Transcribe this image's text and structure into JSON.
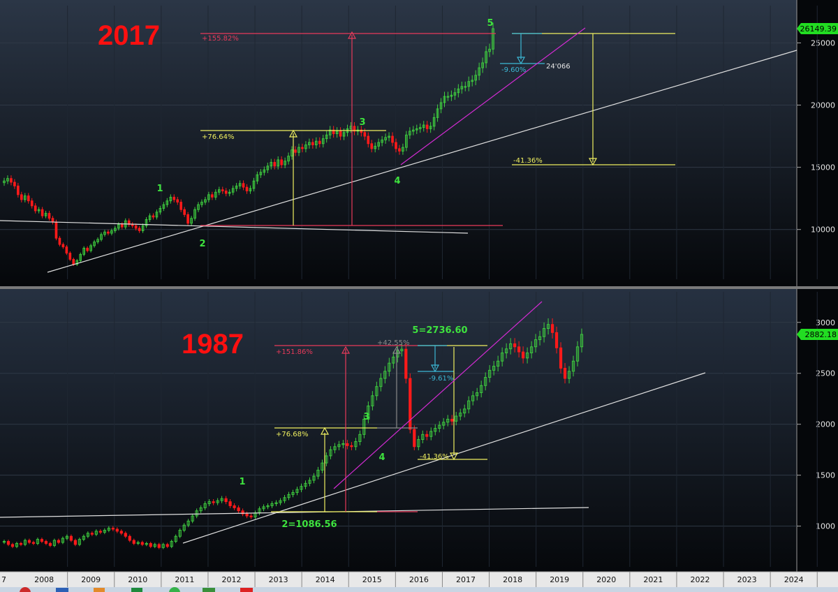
{
  "colors": {
    "bull": "#3fcf3f",
    "bear": "#ff1a1a",
    "yellow": "#f0f060",
    "crimson": "#e83a5a",
    "cyan": "#3cb9d6",
    "magenta": "#d22bd2",
    "trend": "#e0e0e0",
    "badge": "#22dd22"
  },
  "x_axis": {
    "labels": [
      "2008",
      "2009",
      "2010",
      "2011",
      "2012",
      "2013",
      "2014",
      "2015",
      "2016",
      "2017",
      "2018",
      "2019",
      "2020",
      "2021",
      "2022",
      "2023",
      "2024"
    ]
  },
  "chart_data": [
    {
      "type": "candlestick",
      "title": "2017",
      "x_range": [
        2007.5,
        2024.9
      ],
      "ylim": [
        6000,
        28000
      ],
      "y_ticks": [
        10000,
        15000,
        20000,
        25000
      ],
      "y_tick_labels": [
        "10000",
        "15000",
        "20000",
        "25000"
      ],
      "last_price": 26149.39,
      "last_price_label": "26149.39",
      "closes": [
        13900,
        14100,
        13800,
        13500,
        12800,
        12400,
        12700,
        12300,
        11900,
        11500,
        11600,
        11100,
        11300,
        10900,
        10600,
        9300,
        8800,
        8600,
        8100,
        7600,
        7200,
        7500,
        8000,
        8500,
        8300,
        8700,
        9000,
        9200,
        9600,
        9800,
        9700,
        9900,
        10100,
        10400,
        10200,
        10700,
        10400,
        10300,
        10100,
        9900,
        10300,
        10800,
        11100,
        11000,
        11400,
        11700,
        12000,
        12300,
        12600,
        12400,
        12200,
        11600,
        11200,
        10500,
        10900,
        11600,
        12000,
        12200,
        12400,
        12800,
        12600,
        13000,
        13200,
        13100,
        12900,
        13000,
        13300,
        13500,
        13700,
        13400,
        13100,
        13300,
        13900,
        14400,
        14600,
        14800,
        15100,
        15400,
        15100,
        15600,
        15200,
        15500,
        15900,
        16400,
        16200,
        16600,
        16500,
        16800,
        17000,
        16800,
        17100,
        16900,
        17300,
        17600,
        18000,
        17700,
        17900,
        17500,
        17800,
        18100,
        18300,
        17900,
        18000,
        17800,
        17500,
        16900,
        16500,
        16700,
        17000,
        17200,
        17400,
        17500,
        17000,
        16500,
        16300,
        16600,
        17600,
        17900,
        18000,
        18100,
        18200,
        18400,
        18100,
        18300,
        19000,
        19700,
        20200,
        20700,
        20700,
        20800,
        21000,
        21300,
        21500,
        21500,
        21900,
        22000,
        22400,
        23000,
        23400,
        24300,
        24500,
        26149
      ],
      "wave_labels": [
        "1",
        "2",
        "3",
        "4",
        "5"
      ],
      "pct_labels": {
        "up1": "+76.64%",
        "up2": "+155.82%",
        "down_small": "-9.60%",
        "target_price": "24'066",
        "down_big": "-41.36%"
      }
    },
    {
      "type": "candlestick",
      "title": "1987",
      "x_range": [
        2007.5,
        2024.9
      ],
      "ylim": [
        600,
        3300
      ],
      "y_ticks": [
        1000,
        1500,
        2000,
        2500,
        3000
      ],
      "y_tick_labels": [
        "1000",
        "1500",
        "2000",
        "2500",
        "3000"
      ],
      "last_price": 2882.18,
      "last_price_label": "2882.18",
      "closes": [
        850,
        820,
        800,
        830,
        820,
        860,
        840,
        830,
        870,
        850,
        830,
        810,
        860,
        840,
        880,
        900,
        860,
        820,
        870,
        900,
        930,
        920,
        950,
        940,
        960,
        980,
        970,
        950,
        930,
        900,
        860,
        830,
        840,
        820,
        830,
        800,
        820,
        790,
        820,
        800,
        850,
        900,
        960,
        1010,
        1050,
        1100,
        1150,
        1180,
        1220,
        1240,
        1230,
        1250,
        1270,
        1240,
        1200,
        1180,
        1150,
        1120,
        1100,
        1090,
        1130,
        1170,
        1190,
        1200,
        1220,
        1230,
        1250,
        1280,
        1310,
        1330,
        1360,
        1390,
        1420,
        1450,
        1490,
        1550,
        1620,
        1690,
        1750,
        1780,
        1800,
        1810,
        1790,
        1780,
        1830,
        1900,
        2050,
        2180,
        2280,
        2370,
        2450,
        2520,
        2600,
        2660,
        2720,
        2737,
        2450,
        1950,
        1780,
        1850,
        1900,
        1880,
        1930,
        1960,
        1990,
        2020,
        2050,
        2030,
        2080,
        2110,
        2150,
        2230,
        2280,
        2310,
        2380,
        2460,
        2530,
        2570,
        2620,
        2700,
        2740,
        2790,
        2760,
        2710,
        2650,
        2700,
        2760,
        2830,
        2860,
        2940,
        2980,
        2900,
        2750,
        2550,
        2450,
        2520,
        2620,
        2760,
        2882
      ],
      "wave_labels": [
        "1",
        "2=1086.56",
        "3",
        "4",
        "5=2736.60"
      ],
      "pct_labels": {
        "up1": "+76.68%",
        "up2": "+151.86%",
        "up3": "+42.55%",
        "down_small": "-9.61%",
        "down_big": "-41.36%"
      }
    }
  ]
}
